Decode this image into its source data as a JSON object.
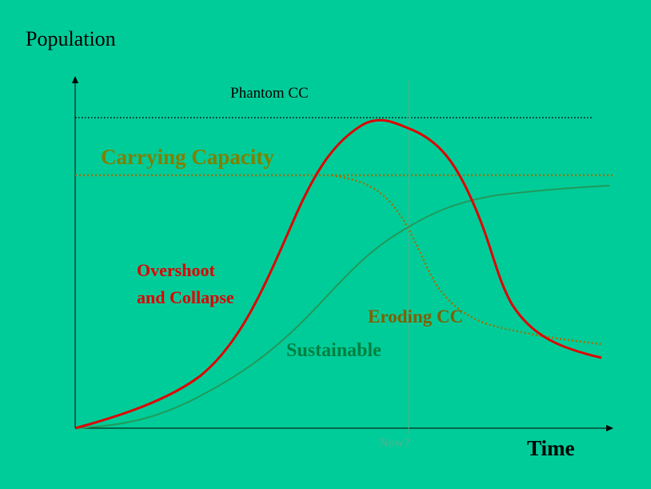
{
  "labels": {
    "y_axis": "Population",
    "x_axis": "Time",
    "phantom_cc": "Phantom CC",
    "carrying_capacity": "Carrying Capacity",
    "overshoot_line1": "Overshoot",
    "overshoot_line2": "and Collapse",
    "eroding_cc": "Eroding CC",
    "sustainable": "Sustainable",
    "now": "Now?"
  },
  "colors": {
    "background": "#00cc99",
    "overshoot": "#e00000",
    "carrying_capacity": "#808000",
    "eroding_cc": "#806000",
    "sustainable": "#008040",
    "phantom_cc": "#000000",
    "now_marker": "#4db38d"
  },
  "curves": {
    "overshoot_and_collapse": "rises above carrying capacity, peaks near phantom CC, then collapses",
    "sustainable": "S-shaped growth leveling off below carrying capacity",
    "eroding_cc": "carrying capacity declining after overshoot"
  }
}
